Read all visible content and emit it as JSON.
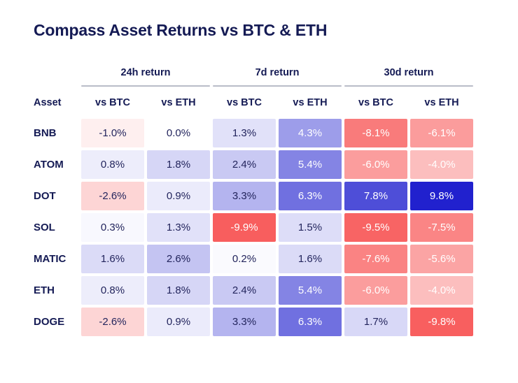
{
  "chart_data": {
    "type": "heatmap",
    "title": "Compass Asset Returns vs BTC & ETH",
    "row_label_header": "Asset",
    "column_groups": [
      {
        "label": "24h return"
      },
      {
        "label": "7d return"
      },
      {
        "label": "30d return"
      }
    ],
    "sub_columns": [
      "vs BTC",
      "vs ETH"
    ],
    "rows": [
      {
        "asset": "BNB",
        "values_pct": [
          -1.0,
          0.0,
          1.3,
          4.3,
          -8.1,
          -6.1
        ]
      },
      {
        "asset": "ATOM",
        "values_pct": [
          0.8,
          1.8,
          2.4,
          5.4,
          -6.0,
          -4.0
        ]
      },
      {
        "asset": "DOT",
        "values_pct": [
          -2.6,
          0.9,
          3.3,
          6.3,
          7.8,
          9.8
        ]
      },
      {
        "asset": "SOL",
        "values_pct": [
          0.3,
          1.3,
          -9.9,
          1.5,
          -9.5,
          -7.5
        ]
      },
      {
        "asset": "MATIC",
        "values_pct": [
          1.6,
          2.6,
          0.2,
          1.6,
          -7.6,
          -5.6
        ]
      },
      {
        "asset": "ETH",
        "values_pct": [
          0.8,
          1.8,
          2.4,
          5.4,
          -6.0,
          -4.0
        ]
      },
      {
        "asset": "DOGE",
        "values_pct": [
          -2.6,
          0.9,
          3.3,
          6.3,
          1.7,
          -9.8
        ]
      }
    ],
    "value_decimals": 1,
    "value_suffix": "%",
    "color_scale": {
      "positive_max_color": "#1c1ccd",
      "negative_max_color": "#f85c5c",
      "zero_color": "#ffffff",
      "vmax_abs_pct": 10,
      "white_text_threshold_abs_pct": 4.0,
      "white_text_color": "#ffffff",
      "dark_text_color": "#23255d"
    },
    "colors": {
      "title_text": "#141a54",
      "header_text": "#141a54",
      "group_rule": "#b9bcc8",
      "background": "#ffffff"
    },
    "legend_position": "none",
    "grid": false
  }
}
